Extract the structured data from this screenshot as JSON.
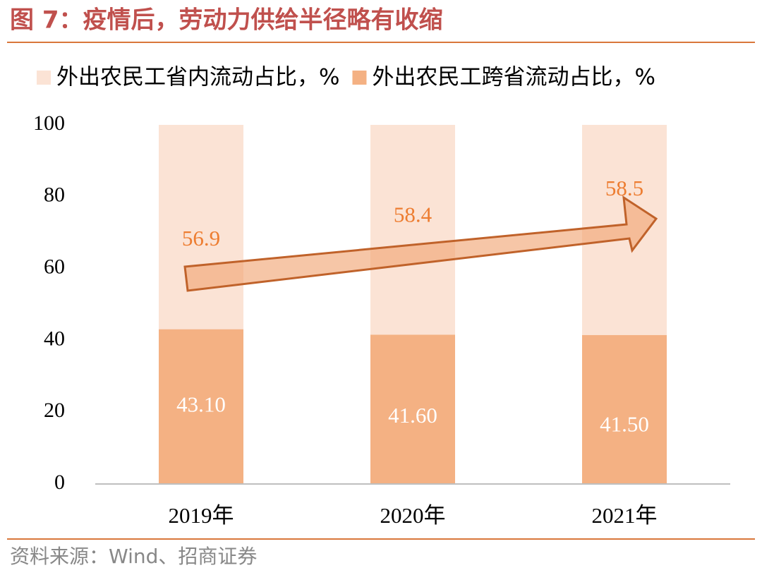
{
  "chart_data": {
    "type": "stacked-bar",
    "title": "图 7：疫情后，劳动力供给半径略有收缩",
    "source": "资料来源：Wind、招商证券",
    "categories": [
      "2019年",
      "2020年",
      "2021年"
    ],
    "series": [
      {
        "name": "外出农民工跨省流动占比，%",
        "color": "#f4b183",
        "values": [
          43.1,
          41.6,
          41.5
        ],
        "value_labels": [
          "43.10",
          "41.60",
          "41.50"
        ]
      },
      {
        "name": "外出农民工省内流动占比，%",
        "color": "#fbe3d5",
        "values": [
          56.9,
          58.4,
          58.5
        ]
      }
    ],
    "ylim": [
      0,
      100
    ],
    "yticks": [
      0,
      20,
      40,
      60,
      80,
      100
    ],
    "grid": false
  }
}
